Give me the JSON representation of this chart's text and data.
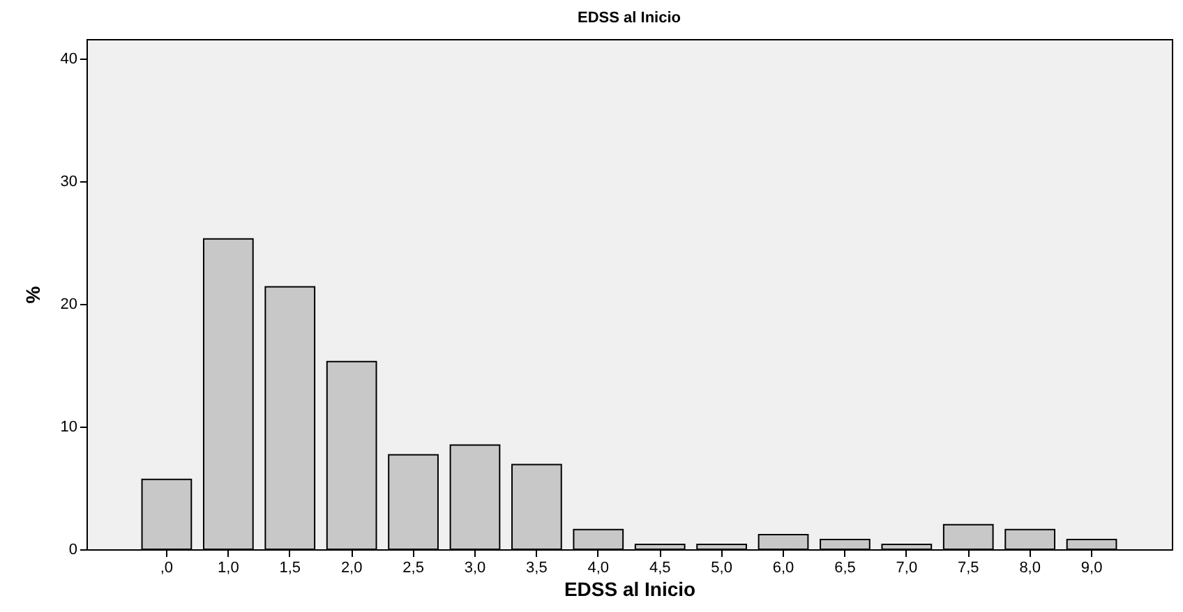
{
  "chart_data": {
    "type": "bar",
    "title": "EDSS al Inicio",
    "xlabel": "EDSS al Inicio",
    "ylabel": "%",
    "categories": [
      ",0",
      "1,0",
      "1,5",
      "2,0",
      "2,5",
      "3,0",
      "3,5",
      "4,0",
      "4,5",
      "5,0",
      "6,0",
      "6,5",
      "7,0",
      "7,5",
      "8,0",
      "9,0"
    ],
    "values": [
      5.7,
      25.3,
      21.4,
      15.3,
      7.7,
      8.5,
      6.9,
      1.6,
      0.4,
      0.4,
      1.2,
      0.8,
      0.4,
      2.0,
      1.6,
      0.8
    ],
    "color": "#c8c8c8",
    "ylim": [
      0,
      41.6
    ],
    "yticks": [
      0,
      10,
      20,
      30,
      40
    ],
    "grid": false
  }
}
